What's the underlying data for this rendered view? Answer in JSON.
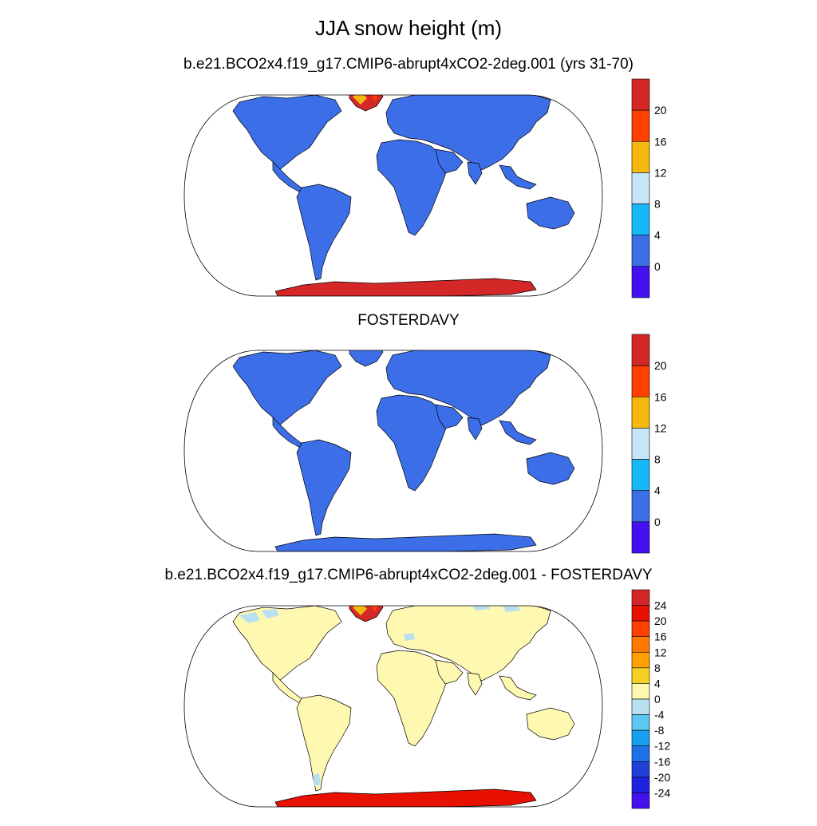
{
  "main_title": "JJA snow height (m)",
  "panels": [
    {
      "title": "b.e21.BCO2x4.f19_g17.CMIP6-abrupt4xCO2-2deg.001 (yrs 31-70)",
      "colorbar": {
        "labels": [
          "20",
          "16",
          "12",
          "8",
          "4",
          "0"
        ],
        "colors": [
          "#d42828",
          "#ff4000",
          "#f5b80f",
          "#c8e4f8",
          "#18b8f8",
          "#3c6ee8",
          "#4410f0"
        ]
      },
      "land_color": "#3c6ee8",
      "greenland": "high",
      "antarctica_color": "#d42828"
    },
    {
      "title": "FOSTERDAVY",
      "colorbar": {
        "labels": [
          "20",
          "16",
          "12",
          "8",
          "4",
          "0"
        ],
        "colors": [
          "#d42828",
          "#ff4000",
          "#f5b80f",
          "#c8e4f8",
          "#18b8f8",
          "#3c6ee8",
          "#4410f0"
        ]
      },
      "land_color": "#3c6ee8",
      "greenland": "none",
      "antarctica_color": "#3c6ee8"
    },
    {
      "title": "b.e21.BCO2x4.f19_g17.CMIP6-abrupt4xCO2-2deg.001 - FOSTERDAVY",
      "colorbar": {
        "labels": [
          "24",
          "20",
          "16",
          "12",
          "8",
          "4",
          "0",
          "-4",
          "-8",
          "-12",
          "-16",
          "-20",
          "-24"
        ],
        "colors": [
          "#d42828",
          "#e81000",
          "#ff4000",
          "#ff7a00",
          "#ffa000",
          "#f5d020",
          "#fff8b0",
          "#b8e0f0",
          "#5ac8f0",
          "#18a0f0",
          "#2070e8",
          "#2040d8",
          "#2020e0",
          "#4410f0"
        ]
      },
      "land_color": "#fff8b0",
      "greenland": "high",
      "antarctica_color": "#e81000"
    }
  ]
}
